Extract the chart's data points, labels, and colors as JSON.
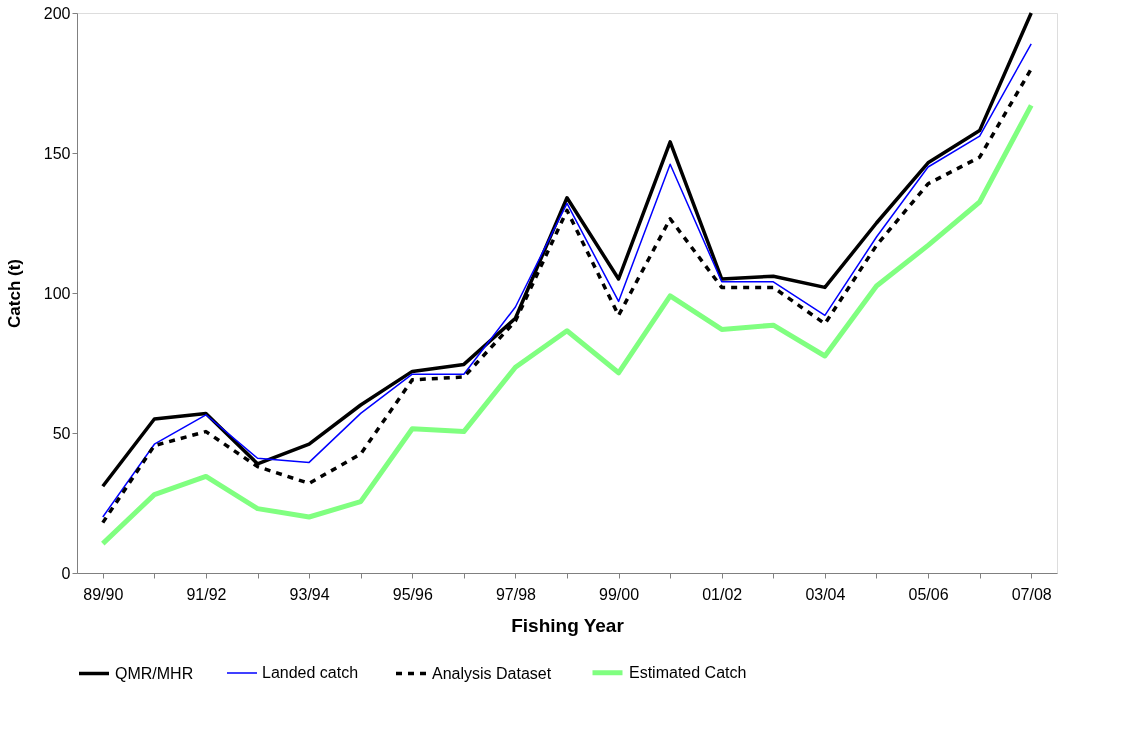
{
  "chart_data": {
    "type": "line",
    "xlabel": "Fishing Year",
    "ylabel": "Catch (t)",
    "categories": [
      "89/90",
      null,
      "91/92",
      null,
      "93/94",
      null,
      "95/96",
      null,
      "97/98",
      null,
      "99/00",
      null,
      "01/02",
      null,
      "03/04",
      null,
      "05/06",
      null,
      "07/08"
    ],
    "ylim": [
      0,
      200
    ],
    "yticks": [
      0,
      50,
      100,
      150,
      200
    ],
    "grid": false,
    "legend": "bottom",
    "marker": "none",
    "series": [
      {
        "name": "QMR/MHR",
        "color": "#000000",
        "line_style": "solid",
        "values": [
          31,
          55,
          57,
          39,
          46,
          60,
          72,
          74.5,
          91,
          134,
          105,
          154,
          105,
          106,
          102,
          125,
          146.5,
          158,
          200
        ]
      },
      {
        "name": "Landed catch",
        "color": "#0000ff",
        "line_style": "solid",
        "values": [
          20,
          46,
          56.5,
          41,
          39.5,
          57,
          71,
          71,
          95,
          132,
          97,
          146,
          104,
          104,
          92,
          120,
          145,
          156,
          189
        ]
      },
      {
        "name": "Analysis Dataset",
        "color": "#000000",
        "line_style": "dashed",
        "values": [
          18,
          45.5,
          50.5,
          38,
          32,
          42.5,
          69,
          70,
          90,
          129.5,
          92,
          126.5,
          102,
          102,
          89,
          117,
          139,
          148.5,
          180
        ]
      },
      {
        "name": "Estimated Catch",
        "color": "#80ff80",
        "line_style": "solid",
        "values": [
          10.5,
          28,
          34.5,
          23,
          20,
          25.5,
          51.5,
          50.5,
          73.5,
          86.5,
          71.5,
          99,
          87,
          88.5,
          77.5,
          102.5,
          117,
          132.5,
          167
        ]
      }
    ]
  }
}
